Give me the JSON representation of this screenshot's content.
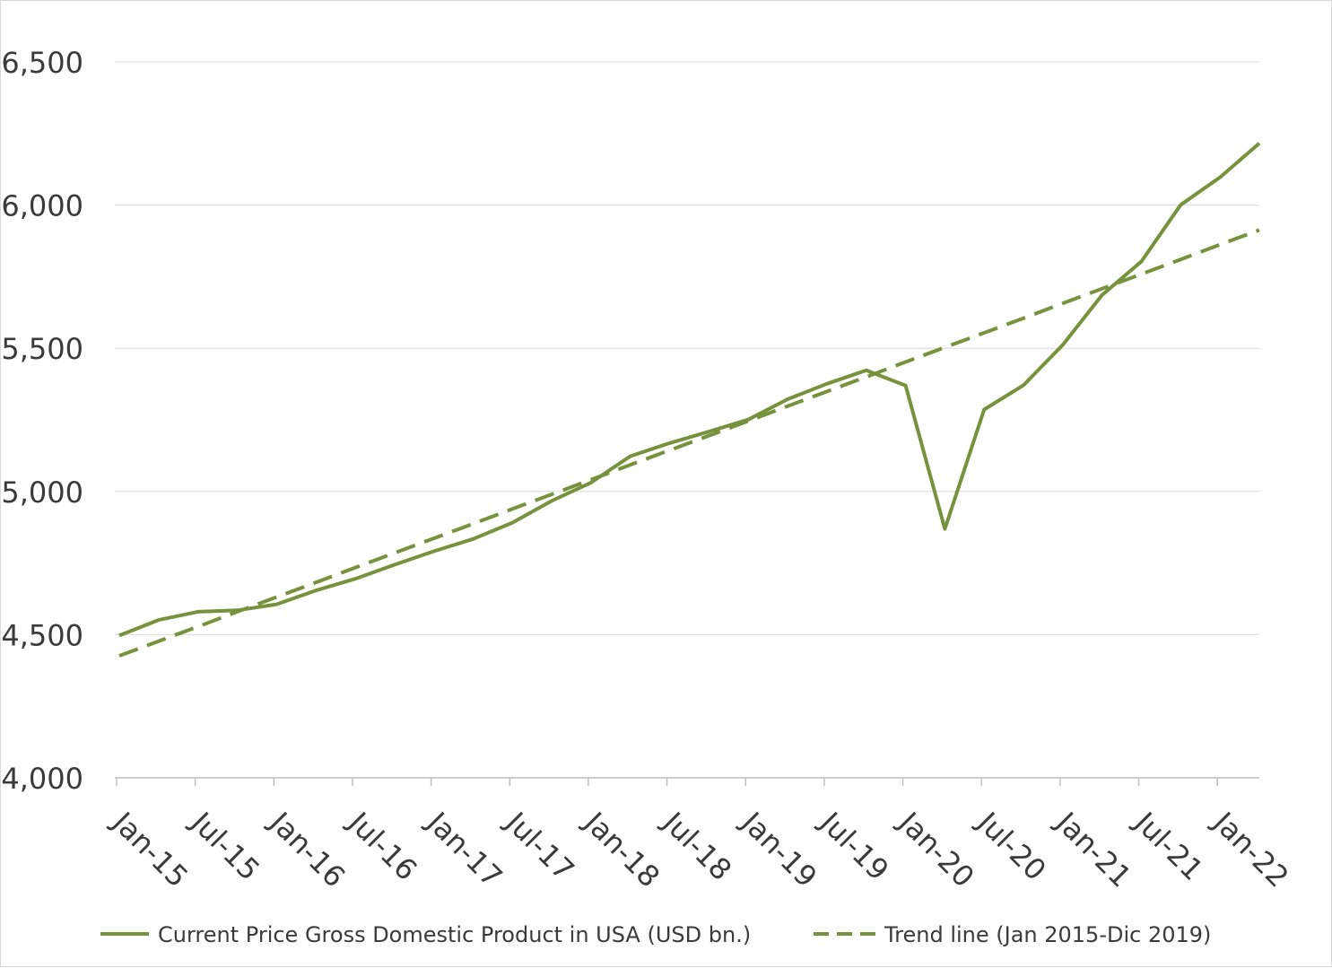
{
  "chart_data": {
    "type": "line",
    "title": "",
    "xlabel": "",
    "ylabel": "",
    "ylim": [
      4000,
      6500
    ],
    "yticks": [
      "4,000",
      "4,500",
      "5,000",
      "5,500",
      "6,000",
      "6,500"
    ],
    "ytick_values": [
      4000,
      4500,
      5000,
      5500,
      6000,
      6500
    ],
    "xtick_labels": [
      "Jan-15",
      "Jul-15",
      "Jan-16",
      "Jul-16",
      "Jan-17",
      "Jul-17",
      "Jan-18",
      "Jul-18",
      "Jan-19",
      "Jul-19",
      "Jan-20",
      "Jul-20",
      "Jan-21",
      "Jul-21",
      "Jan-22"
    ],
    "categories": [
      "Jan-15",
      "Apr-15",
      "Jul-15",
      "Oct-15",
      "Jan-16",
      "Apr-16",
      "Jul-16",
      "Oct-16",
      "Jan-17",
      "Apr-17",
      "Jul-17",
      "Oct-17",
      "Jan-18",
      "Apr-18",
      "Jul-18",
      "Oct-18",
      "Jan-19",
      "Apr-19",
      "Jul-19",
      "Oct-19",
      "Jan-20",
      "Apr-20",
      "Jul-20",
      "Oct-20",
      "Jan-21",
      "Apr-21",
      "Jul-21",
      "Oct-21",
      "Jan-22",
      "Apr-22"
    ],
    "series": [
      {
        "name": "Current Price Gross Domestic Product in USA (USD bn.)",
        "style": "solid",
        "color": "#76923c",
        "values": [
          4497,
          4551,
          4580,
          4585,
          4606,
          4654,
          4695,
          4744,
          4791,
          4834,
          4891,
          4967,
          5031,
          5123,
          5169,
          5209,
          5251,
          5322,
          5376,
          5423,
          5370,
          4869,
          5286,
          5371,
          5512,
          5686,
          5803,
          6001,
          6097,
          6216
        ]
      },
      {
        "name": "Trend line (Jan 2015-Dic 2019)",
        "style": "dashed",
        "color": "#76923c",
        "values": [
          4426,
          4477,
          4528,
          4580,
          4631,
          4682,
          4734,
          4785,
          4836,
          4887,
          4939,
          4990,
          5041,
          5093,
          5144,
          5195,
          5246,
          5298,
          5349,
          5400,
          5452,
          5503,
          5554,
          5605,
          5657,
          5708,
          5759,
          5810,
          5862,
          5913
        ]
      }
    ],
    "grid": true,
    "legend": "bottom"
  }
}
